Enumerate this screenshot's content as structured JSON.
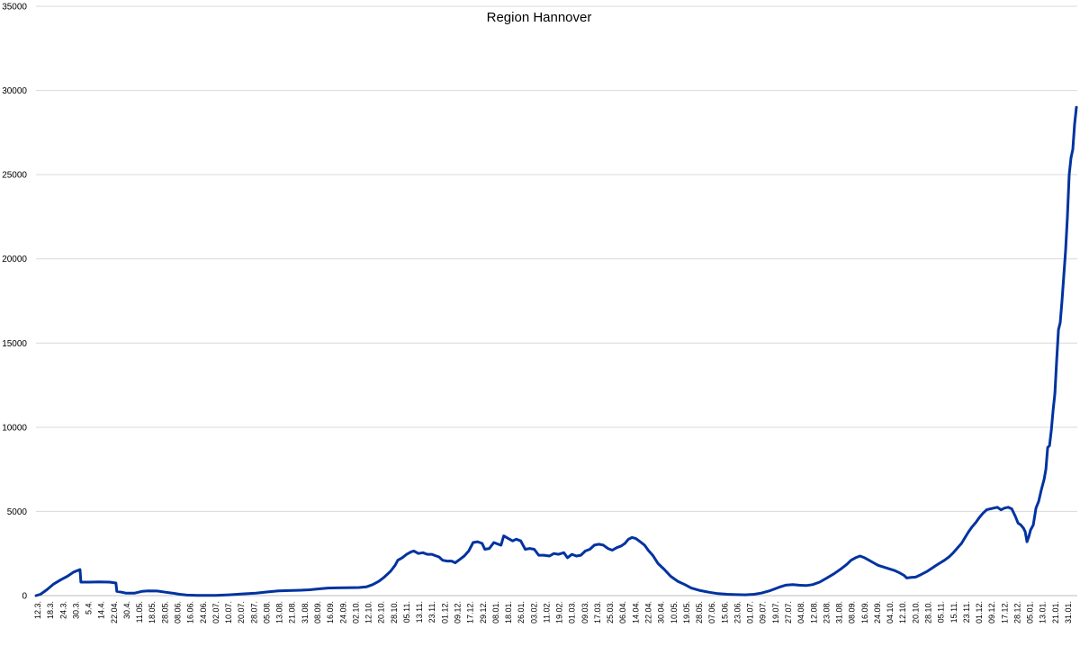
{
  "chart_data": {
    "type": "line",
    "title": "Region Hannover",
    "xlabel": "",
    "ylabel": "",
    "ylim": [
      0,
      35000
    ],
    "ytick_labels": [
      "0",
      "5000",
      "10000",
      "15000",
      "20000",
      "25000",
      "30000",
      "35000"
    ],
    "yticks": [
      0,
      5000,
      10000,
      15000,
      20000,
      25000,
      30000,
      35000
    ],
    "grid": true,
    "legend": "none",
    "line_color": "#0033a0",
    "categories": [
      "12.3.",
      "18.3.",
      "24.3.",
      "30.3.",
      "5.4.",
      "14.4.",
      "22.04.",
      "30.4.",
      "11.05.",
      "18.05.",
      "28.05.",
      "08.06.",
      "16.06.",
      "24.06.",
      "02.07.",
      "10.07.",
      "20.07.",
      "28.07.",
      "05.08.",
      "13.08.",
      "21.08.",
      "31.08.",
      "08.09.",
      "16.09.",
      "24.09.",
      "02.10.",
      "12.10.",
      "20.10.",
      "28.10.",
      "05.11.",
      "13.11.",
      "23.11.",
      "01.12.",
      "09.12.",
      "17.12.",
      "29.12.",
      "08.01.",
      "18.01.",
      "26.01.",
      "03.02.",
      "11.02.",
      "19.02.",
      "01.03.",
      "09.03.",
      "17.03.",
      "25.03.",
      "06.04.",
      "14.04.",
      "22.04.",
      "30.04.",
      "10.05.",
      "19.05.",
      "28.05.",
      "07.06.",
      "15.06.",
      "23.06.",
      "01.07.",
      "09.07.",
      "19.07.",
      "27.07.",
      "04.08.",
      "12.08.",
      "23.08.",
      "31.08.",
      "08.09.",
      "16.09.",
      "24.09.",
      "04.10.",
      "12.10.",
      "20.10.",
      "28.10.",
      "05.11.",
      "15.11.",
      "23.11.",
      "01.12.",
      "09.12.",
      "17.12.",
      "28.12.",
      "05.01.",
      "13.01.",
      "21.01.",
      "31.01."
    ],
    "series": [
      {
        "values": [
          [
            0,
            0
          ],
          [
            5,
            80
          ],
          [
            12,
            350
          ],
          [
            20,
            700
          ],
          [
            28,
            950
          ],
          [
            35,
            1150
          ],
          [
            42,
            1400
          ],
          [
            49,
            1550
          ],
          [
            50,
            800
          ],
          [
            60,
            800
          ],
          [
            70,
            820
          ],
          [
            82,
            800
          ],
          [
            89,
            750
          ],
          [
            90,
            250
          ],
          [
            96,
            200
          ],
          [
            100,
            150
          ],
          [
            110,
            150
          ],
          [
            118,
            250
          ],
          [
            125,
            280
          ],
          [
            135,
            270
          ],
          [
            145,
            200
          ],
          [
            152,
            150
          ],
          [
            160,
            80
          ],
          [
            168,
            30
          ],
          [
            180,
            10
          ],
          [
            200,
            10
          ],
          [
            215,
            50
          ],
          [
            230,
            100
          ],
          [
            245,
            150
          ],
          [
            258,
            220
          ],
          [
            270,
            280
          ],
          [
            282,
            300
          ],
          [
            295,
            320
          ],
          [
            305,
            350
          ],
          [
            315,
            400
          ],
          [
            325,
            450
          ],
          [
            335,
            460
          ],
          [
            345,
            470
          ],
          [
            360,
            480
          ],
          [
            368,
            520
          ],
          [
            375,
            650
          ],
          [
            382,
            850
          ],
          [
            388,
            1100
          ],
          [
            395,
            1450
          ],
          [
            400,
            1800
          ],
          [
            403,
            2100
          ],
          [
            408,
            2250
          ],
          [
            413,
            2450
          ],
          [
            418,
            2600
          ],
          [
            421,
            2650
          ],
          [
            426,
            2500
          ],
          [
            431,
            2550
          ],
          [
            436,
            2450
          ],
          [
            441,
            2450
          ],
          [
            446,
            2350
          ],
          [
            449,
            2300
          ],
          [
            453,
            2100
          ],
          [
            458,
            2050
          ],
          [
            463,
            2050
          ],
          [
            467,
            1950
          ],
          [
            472,
            2150
          ],
          [
            477,
            2350
          ],
          [
            482,
            2650
          ],
          [
            487,
            3150
          ],
          [
            492,
            3200
          ],
          [
            497,
            3100
          ],
          [
            500,
            2750
          ],
          [
            505,
            2800
          ],
          [
            510,
            3150
          ],
          [
            515,
            3050
          ],
          [
            518,
            3000
          ],
          [
            521,
            3550
          ],
          [
            526,
            3400
          ],
          [
            531,
            3250
          ],
          [
            535,
            3350
          ],
          [
            540,
            3250
          ],
          [
            545,
            2750
          ],
          [
            550,
            2800
          ],
          [
            555,
            2750
          ],
          [
            560,
            2400
          ],
          [
            566,
            2400
          ],
          [
            572,
            2350
          ],
          [
            577,
            2500
          ],
          [
            582,
            2450
          ],
          [
            588,
            2550
          ],
          [
            592,
            2250
          ],
          [
            597,
            2450
          ],
          [
            602,
            2350
          ],
          [
            607,
            2400
          ],
          [
            612,
            2650
          ],
          [
            617,
            2750
          ],
          [
            622,
            3000
          ],
          [
            627,
            3050
          ],
          [
            632,
            3000
          ],
          [
            637,
            2800
          ],
          [
            642,
            2700
          ],
          [
            647,
            2850
          ],
          [
            652,
            2950
          ],
          [
            656,
            3100
          ],
          [
            660,
            3350
          ],
          [
            664,
            3450
          ],
          [
            668,
            3400
          ],
          [
            673,
            3200
          ],
          [
            678,
            3000
          ],
          [
            682,
            2700
          ],
          [
            687,
            2400
          ],
          [
            693,
            1900
          ],
          [
            700,
            1550
          ],
          [
            707,
            1150
          ],
          [
            715,
            850
          ],
          [
            723,
            650
          ],
          [
            730,
            450
          ],
          [
            740,
            300
          ],
          [
            750,
            200
          ],
          [
            760,
            120
          ],
          [
            770,
            80
          ],
          [
            780,
            60
          ],
          [
            790,
            50
          ],
          [
            800,
            80
          ],
          [
            808,
            150
          ],
          [
            818,
            300
          ],
          [
            828,
            500
          ],
          [
            835,
            620
          ],
          [
            843,
            650
          ],
          [
            850,
            620
          ],
          [
            858,
            600
          ],
          [
            865,
            650
          ],
          [
            873,
            800
          ],
          [
            881,
            1050
          ],
          [
            889,
            1300
          ],
          [
            897,
            1600
          ],
          [
            903,
            1850
          ],
          [
            908,
            2100
          ],
          [
            913,
            2250
          ],
          [
            918,
            2350
          ],
          [
            923,
            2250
          ],
          [
            928,
            2100
          ],
          [
            933,
            1950
          ],
          [
            938,
            1800
          ],
          [
            944,
            1700
          ],
          [
            950,
            1600
          ],
          [
            956,
            1500
          ],
          [
            962,
            1350
          ],
          [
            967,
            1200
          ],
          [
            970,
            1050
          ],
          [
            975,
            1080
          ],
          [
            980,
            1100
          ],
          [
            986,
            1250
          ],
          [
            993,
            1450
          ],
          [
            1000,
            1700
          ],
          [
            1006,
            1900
          ],
          [
            1012,
            2100
          ],
          [
            1017,
            2300
          ],
          [
            1021,
            2500
          ],
          [
            1026,
            2800
          ],
          [
            1031,
            3100
          ],
          [
            1035,
            3450
          ],
          [
            1039,
            3800
          ],
          [
            1043,
            4100
          ],
          [
            1047,
            4350
          ],
          [
            1051,
            4650
          ],
          [
            1055,
            4900
          ],
          [
            1059,
            5100
          ],
          [
            1063,
            5150
          ],
          [
            1067,
            5200
          ],
          [
            1071,
            5250
          ],
          [
            1075,
            5100
          ],
          [
            1079,
            5200
          ],
          [
            1083,
            5250
          ],
          [
            1087,
            5150
          ],
          [
            1091,
            4700
          ],
          [
            1094,
            4300
          ],
          [
            1097,
            4200
          ],
          [
            1100,
            4000
          ],
          [
            1102,
            3800
          ],
          [
            1104,
            3200
          ],
          [
            1106,
            3500
          ],
          [
            1108,
            3900
          ],
          [
            1111,
            4200
          ],
          [
            1114,
            5200
          ],
          [
            1117,
            5600
          ],
          [
            1120,
            6300
          ],
          [
            1123,
            6900
          ],
          [
            1125,
            7500
          ],
          [
            1127,
            8800
          ],
          [
            1129,
            8900
          ],
          [
            1131,
            9800
          ],
          [
            1133,
            11000
          ],
          [
            1135,
            12000
          ],
          [
            1137,
            14000
          ],
          [
            1139,
            15800
          ],
          [
            1141,
            16200
          ],
          [
            1143,
            17500
          ],
          [
            1145,
            19000
          ],
          [
            1147,
            20500
          ],
          [
            1149,
            22500
          ],
          [
            1151,
            25000
          ],
          [
            1153,
            26000
          ],
          [
            1155,
            26500
          ],
          [
            1157,
            28000
          ],
          [
            1159,
            29000
          ]
        ]
      }
    ]
  }
}
